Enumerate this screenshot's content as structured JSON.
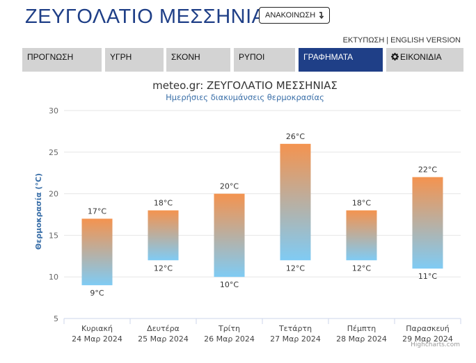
{
  "header": {
    "site_title": "ΖΕΥΓΟΛΑΤΙΟ ΜΕΣΣΗΝΙΑΣ",
    "announce_label": "ΑΝΑΚΟΙΝΩΣΗ",
    "announce_icon": "arrow-down-icon",
    "print_label": "ΕΚΤΥΠΩΣΗ",
    "english_label": "ENGLISH VERSION"
  },
  "tabs": [
    {
      "label": "ΠΡΟΓΝΩΣΗ",
      "active": false
    },
    {
      "label": "ΥΓΡΗ",
      "active": false
    },
    {
      "label": "ΣΚΟΝΗ",
      "active": false
    },
    {
      "label": "ΡΥΠΟΙ",
      "active": false
    },
    {
      "label": "ΓΡΑΦΗΜΑΤΑ",
      "active": true
    },
    {
      "label": "ΕΙΚΟΝΙΔΙΑ",
      "active": false,
      "icon": "gear-icon"
    }
  ],
  "chart_data": {
    "type": "columnrange",
    "title": "meteo.gr: ΖΕΥΓΟΛΑΤΙΟ ΜΕΣΣΗΝΙΑΣ",
    "subtitle": "Ημερήσιες διακυμάνσεις θερμοκρασίας",
    "ylabel": "Θερμοκρασία (°C)",
    "ylim": [
      5,
      30
    ],
    "yticks": [
      5,
      10,
      15,
      20,
      25,
      30
    ],
    "grid": true,
    "unit": "°C",
    "categories": [
      {
        "day": "Κυριακή",
        "date": "24 Μαρ 2024"
      },
      {
        "day": "Δευτέρα",
        "date": "25 Μαρ 2024"
      },
      {
        "day": "Τρίτη",
        "date": "26 Μαρ 2024"
      },
      {
        "day": "Τετάρτη",
        "date": "27 Μαρ 2024"
      },
      {
        "day": "Πέμπτη",
        "date": "28 Μαρ 2024"
      },
      {
        "day": "Παρασκευή",
        "date": "29 Μαρ 2024"
      }
    ],
    "low": [
      9,
      12,
      10,
      12,
      12,
      11
    ],
    "high": [
      17,
      18,
      20,
      26,
      18,
      22
    ],
    "gradient": {
      "top": "#f4934f",
      "bottom": "#7fcbf4"
    },
    "credits": "Highcharts.com"
  }
}
